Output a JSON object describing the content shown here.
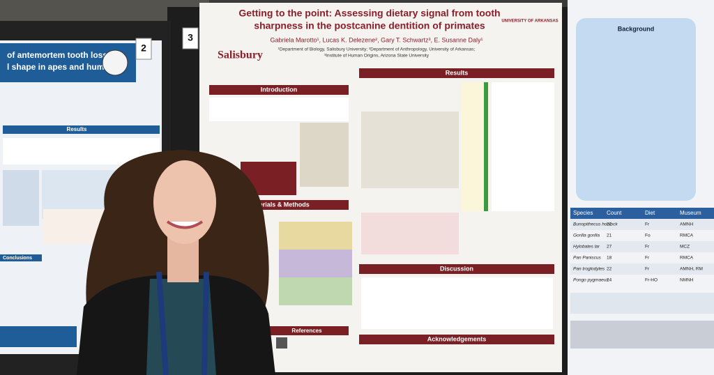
{
  "left_poster": {
    "number": "2",
    "title_lines": [
      "of antemortem tooth loss on",
      "l shape in apes and humans"
    ],
    "sections": [
      "Results",
      "Conclusions"
    ]
  },
  "center_poster": {
    "number": "3",
    "title_lines": [
      "Getting to the point: Assessing dietary signal from tooth",
      "sharpness in the postcanine dentition of primates"
    ],
    "authors": "Gabriela Marotto¹, Lucas K. Delezene², Gary T. Schwartz³, E. Susanne Daly¹",
    "affiliations": [
      "¹Department of Biology, Salisbury University; ²Department of Anthropology, University of Arkansas;",
      "³Institute of Human Origins, Arizona State University"
    ],
    "logos": [
      "Salisbury",
      "UNIVERSITY OF ARKANSAS"
    ],
    "sections": [
      "Introduction",
      "Materials & Methods",
      "References",
      "Results",
      "Discussion",
      "Acknowledgements"
    ]
  },
  "right_poster": {
    "heading": "Background",
    "table": {
      "header": [
        "Species",
        "Count",
        "Diet",
        "Museum"
      ],
      "rows": [
        [
          "Bunopithecus hoolock",
          "22",
          "Fr",
          "AMNH"
        ],
        [
          "Gorilla gorilla",
          "21",
          "Fo",
          "RMCA"
        ],
        [
          "Hylobates lar",
          "27",
          "Fr",
          "MCZ"
        ],
        [
          "Pan Paniscus",
          "18",
          "Fr",
          "RMCA"
        ],
        [
          "Pan troglodytes",
          "22",
          "Fr",
          "AMNH, RM"
        ],
        [
          "Pongo pygmaeus",
          "24",
          "Fr-HO",
          "NMNH"
        ]
      ]
    }
  }
}
